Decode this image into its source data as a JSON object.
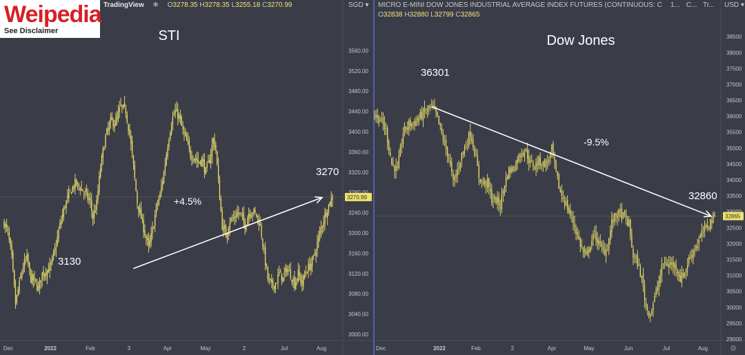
{
  "branding": {
    "logo_text": "Weipedia",
    "logo_subtitle": "See Disclaimer"
  },
  "colors": {
    "background": "#3a3d48",
    "candle": "#f0e36b",
    "annotation": "#ffffff",
    "axis_text": "#c8c8c8",
    "price_tag": "#f0e36b",
    "divider": "#5b6cc8"
  },
  "left_panel": {
    "brand": "TradingView",
    "brand_icon": "snowflake-icon",
    "ohlc": {
      "o_label": "O",
      "o": "3278.35",
      "h_label": "H",
      "h": "3278.35",
      "l_label": "L",
      "l": "3255.18",
      "c_label": "C",
      "c": "3270.99"
    },
    "currency_menu": "SGD"
  },
  "right_panel": {
    "title": "MICRO E-MINI DOW JONES INDUSTRIAL AVERAGE INDEX FUTURES (CONTINUOUS: CURRE...",
    "interval": "1...",
    "extra1": "C...",
    "extra2": "Tr...",
    "ohlc": {
      "o_label": "O",
      "o": "32838",
      "h_label": "H",
      "h": "32880",
      "l_label": "L",
      "l": "32799",
      "c_label": "C",
      "c": "32865"
    },
    "currency_menu": "USD",
    "settings_icon": "gear-icon"
  },
  "chart_data": [
    {
      "type": "candlestick",
      "title": "STI",
      "currency": "SGD",
      "ylim": [
        3000,
        3600
      ],
      "y_ticks": [
        "3000.00",
        "3040.00",
        "3080.00",
        "3120.00",
        "3160.00",
        "3200.00",
        "3240.00",
        "3280.00",
        "3320.00",
        "3360.00",
        "3400.00",
        "3440.00",
        "3480.00",
        "3520.00",
        "3560.00"
      ],
      "x_ticks": [
        "Dec",
        "2022",
        "Feb",
        "3",
        "Apr",
        "May",
        "2",
        "Jul",
        "Aug"
      ],
      "last_price": "3270.99",
      "trend": {
        "from": 3130,
        "to": 3270,
        "label": "+4.5%"
      },
      "annotations": [
        "3130",
        "3270",
        "+4.5%"
      ],
      "path": [
        [
          0,
          3220
        ],
        [
          3,
          3200
        ],
        [
          6,
          3150
        ],
        [
          9,
          3060
        ],
        [
          12,
          3100
        ],
        [
          15,
          3135
        ],
        [
          18,
          3150
        ],
        [
          21,
          3110
        ],
        [
          24,
          3105
        ],
        [
          27,
          3090
        ],
        [
          30,
          3120
        ],
        [
          33,
          3125
        ],
        [
          36,
          3130
        ],
        [
          40,
          3165
        ],
        [
          44,
          3215
        ],
        [
          48,
          3255
        ],
        [
          52,
          3280
        ],
        [
          56,
          3298
        ],
        [
          60,
          3290
        ],
        [
          64,
          3278
        ],
        [
          68,
          3260
        ],
        [
          70,
          3230
        ],
        [
          73,
          3258
        ],
        [
          76,
          3330
        ],
        [
          80,
          3390
        ],
        [
          84,
          3420
        ],
        [
          88,
          3418
        ],
        [
          92,
          3450
        ],
        [
          96,
          3440
        ],
        [
          99,
          3395
        ],
        [
          102,
          3330
        ],
        [
          105,
          3260
        ],
        [
          108,
          3230
        ],
        [
          111,
          3200
        ],
        [
          114,
          3170
        ],
        [
          117,
          3205
        ],
        [
          120,
          3250
        ],
        [
          123,
          3275
        ],
        [
          126,
          3320
        ],
        [
          129,
          3375
        ],
        [
          132,
          3420
        ],
        [
          135,
          3440
        ],
        [
          138,
          3430
        ],
        [
          141,
          3400
        ],
        [
          144,
          3380
        ],
        [
          147,
          3355
        ],
        [
          150,
          3350
        ],
        [
          153,
          3340
        ],
        [
          156,
          3345
        ],
        [
          159,
          3320
        ],
        [
          162,
          3345
        ],
        [
          165,
          3385
        ],
        [
          167,
          3365
        ],
        [
          169,
          3300
        ],
        [
          172,
          3215
        ],
        [
          175,
          3195
        ],
        [
          178,
          3225
        ],
        [
          181,
          3228
        ],
        [
          184,
          3240
        ],
        [
          187,
          3235
        ],
        [
          190,
          3215
        ],
        [
          193,
          3240
        ],
        [
          196,
          3243
        ],
        [
          199,
          3235
        ],
        [
          202,
          3215
        ],
        [
          205,
          3160
        ],
        [
          208,
          3110
        ],
        [
          211,
          3095
        ],
        [
          214,
          3100
        ],
        [
          217,
          3120
        ],
        [
          220,
          3110
        ],
        [
          223,
          3130
        ],
        [
          226,
          3118
        ],
        [
          229,
          3100
        ],
        [
          232,
          3120
        ],
        [
          235,
          3100
        ],
        [
          238,
          3125
        ],
        [
          241,
          3135
        ],
        [
          244,
          3150
        ],
        [
          247,
          3180
        ],
        [
          250,
          3210
        ],
        [
          253,
          3235
        ],
        [
          256,
          3255
        ],
        [
          259,
          3271
        ]
      ]
    },
    {
      "type": "candlestick",
      "title": "Dow Jones",
      "currency": "USD",
      "ylim": [
        29000,
        38850
      ],
      "y_ticks": [
        "29000",
        "29500",
        "30000",
        "30500",
        "31000",
        "31500",
        "32000",
        "32500",
        "33000",
        "33500",
        "34000",
        "34500",
        "35000",
        "35500",
        "36000",
        "36500",
        "37000",
        "37500",
        "38000",
        "38500"
      ],
      "x_ticks": [
        "Dec",
        "2022",
        "Feb",
        "2",
        "Apr",
        "May",
        "Jun",
        "Jul",
        "Aug"
      ],
      "last_price": "32865",
      "trend": {
        "from": 36301,
        "to": 32860,
        "label": "-9.5%"
      },
      "annotations": [
        "36301",
        "32860",
        "-9.5%"
      ],
      "path": [
        [
          0,
          36050
        ],
        [
          4,
          35900
        ],
        [
          8,
          35550
        ],
        [
          12,
          34500
        ],
        [
          16,
          34300
        ],
        [
          20,
          35500
        ],
        [
          24,
          35750
        ],
        [
          28,
          35800
        ],
        [
          32,
          36000
        ],
        [
          36,
          36150
        ],
        [
          40,
          36301
        ],
        [
          43,
          36050
        ],
        [
          46,
          35600
        ],
        [
          49,
          35100
        ],
        [
          52,
          34700
        ],
        [
          55,
          33900
        ],
        [
          58,
          34300
        ],
        [
          61,
          34800
        ],
        [
          64,
          35100
        ],
        [
          67,
          35500
        ],
        [
          70,
          34900
        ],
        [
          73,
          34100
        ],
        [
          76,
          33900
        ],
        [
          79,
          33900
        ],
        [
          82,
          33400
        ],
        [
          85,
          33350
        ],
        [
          88,
          33200
        ],
        [
          91,
          33900
        ],
        [
          94,
          34300
        ],
        [
          97,
          34350
        ],
        [
          100,
          34650
        ],
        [
          103,
          34900
        ],
        [
          106,
          34900
        ],
        [
          109,
          34500
        ],
        [
          112,
          34450
        ],
        [
          115,
          34600
        ],
        [
          118,
          34500
        ],
        [
          121,
          34550
        ],
        [
          124,
          34950
        ],
        [
          127,
          34200
        ],
        [
          130,
          33600
        ],
        [
          133,
          33350
        ],
        [
          136,
          33000
        ],
        [
          139,
          32700
        ],
        [
          142,
          32250
        ],
        [
          145,
          31850
        ],
        [
          148,
          31550
        ],
        [
          151,
          32000
        ],
        [
          154,
          32300
        ],
        [
          157,
          32000
        ],
        [
          160,
          31750
        ],
        [
          163,
          31900
        ],
        [
          166,
          32650
        ],
        [
          169,
          32900
        ],
        [
          172,
          32950
        ],
        [
          175,
          32800
        ],
        [
          178,
          32600
        ],
        [
          181,
          31600
        ],
        [
          184,
          31400
        ],
        [
          187,
          30900
        ],
        [
          190,
          30000
        ],
        [
          193,
          29800
        ],
        [
          196,
          30300
        ],
        [
          199,
          30800
        ],
        [
          202,
          31400
        ],
        [
          205,
          31350
        ],
        [
          208,
          31350
        ],
        [
          211,
          31300
        ],
        [
          214,
          30900
        ],
        [
          217,
          31100
        ],
        [
          220,
          31500
        ],
        [
          223,
          31800
        ],
        [
          226,
          32000
        ],
        [
          229,
          32300
        ],
        [
          232,
          32500
        ],
        [
          235,
          32700
        ],
        [
          238,
          32865
        ]
      ]
    }
  ]
}
